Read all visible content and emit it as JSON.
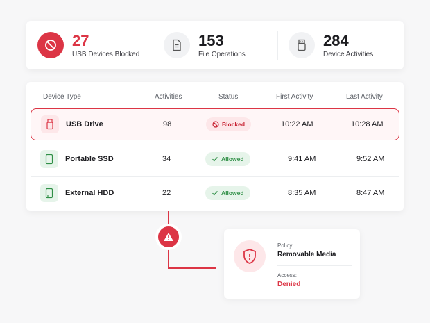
{
  "stats": [
    {
      "value": "27",
      "label": "USB Devices Blocked",
      "icon": "block-icon"
    },
    {
      "value": "153",
      "label": "File Operations",
      "icon": "document-icon"
    },
    {
      "value": "284",
      "label": "Device Activities",
      "icon": "usb-icon"
    }
  ],
  "table": {
    "headers": {
      "device_type": "Device Type",
      "activities": "Activities",
      "status": "Status",
      "first_activity": "First Activity",
      "last_activity": "Last Activity"
    },
    "rows": [
      {
        "device": "USB Drive",
        "icon": "usb-drive-icon",
        "activities": "98",
        "status": "Blocked",
        "first": "10:22 AM",
        "last": "10:28 AM"
      },
      {
        "device": "Portable SSD",
        "icon": "ssd-icon",
        "activities": "34",
        "status": "Allowed",
        "first": "9:41 AM",
        "last": "9:52 AM"
      },
      {
        "device": "External HDD",
        "icon": "hdd-icon",
        "activities": "22",
        "status": "Allowed",
        "first": "8:35 AM",
        "last": "8:47 AM"
      }
    ]
  },
  "policy": {
    "policy_label": "Policy:",
    "policy_value": "Removable Media",
    "access_label": "Access:",
    "access_value": "Denied"
  },
  "colors": {
    "accent_red": "#dc3545",
    "allowed_green": "#2f8f46"
  }
}
